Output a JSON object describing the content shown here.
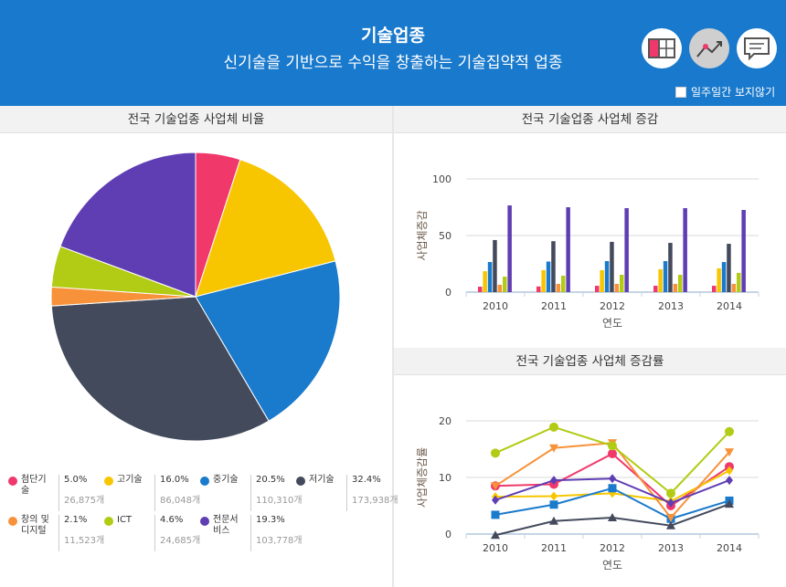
{
  "header": {
    "title": "기술업종",
    "subtitle": "신기술을 기반으로 수익을 창출하는 기술집약적 업종",
    "checkbox_label": "일주일간 보지않기",
    "icons": [
      "table-icon",
      "line-chart-icon",
      "comment-icon"
    ]
  },
  "colors": {
    "header": "#1979cc",
    "series": [
      "#f0386b",
      "#f7c600",
      "#1a7acc",
      "#434a5c",
      "#f7923a",
      "#b2cb15",
      "#5f3eb3"
    ]
  },
  "chart_data": [
    {
      "type": "pie",
      "title": "전국 기술업종 사업체 비율",
      "legend": [
        {
          "name": "첨단기술",
          "percent": "5.0%",
          "count": "26,875개",
          "value": 5.0
        },
        {
          "name": "고기술",
          "percent": "16.0%",
          "count": "86,048개",
          "value": 16.0
        },
        {
          "name": "중기술",
          "percent": "20.5%",
          "count": "110,310개",
          "value": 20.5
        },
        {
          "name": "저기술",
          "percent": "32.4%",
          "count": "173,938개",
          "value": 32.4
        },
        {
          "name": "창의 및 디지털",
          "percent": "2.1%",
          "count": "11,523개",
          "value": 2.1
        },
        {
          "name": "ICT",
          "percent": "4.6%",
          "count": "24,685개",
          "value": 4.6
        },
        {
          "name": "전문서비스",
          "percent": "19.3%",
          "count": "103,778개",
          "value": 19.3
        }
      ]
    },
    {
      "type": "bar",
      "title": "전국 기술업종 사업체 증감",
      "xlabel": "연도",
      "ylabel": "사업체증감",
      "ylim": [
        0,
        100
      ],
      "yticks": [
        "0",
        "50",
        "100"
      ],
      "grid": true,
      "categories": [
        "2010",
        "2011",
        "2012",
        "2013",
        "2014"
      ],
      "series": [
        {
          "values": [
            4.8,
            5,
            5.6,
            5.6,
            5.6
          ]
        },
        {
          "values": [
            18.5,
            19.4,
            19.4,
            20.2,
            21
          ]
        },
        {
          "values": [
            26.6,
            27,
            27.4,
            27.4,
            26.6
          ]
        },
        {
          "values": [
            46,
            45,
            44.4,
            43.5,
            42.7
          ]
        },
        {
          "values": [
            6.5,
            7.3,
            7.3,
            7.3,
            7.3
          ]
        },
        {
          "values": [
            13.7,
            14.5,
            15.3,
            15.3,
            17
          ]
        },
        {
          "values": [
            76.6,
            75,
            74.2,
            74.2,
            72.6
          ]
        }
      ]
    },
    {
      "type": "line",
      "title": "전국 기술업종 사업체 증감률",
      "xlabel": "연도",
      "ylabel": "사업체증감률",
      "ylim": [
        0,
        20
      ],
      "yticks": [
        "0",
        "10",
        "20"
      ],
      "grid": true,
      "categories": [
        "2010",
        "2011",
        "2012",
        "2013",
        "2014"
      ],
      "series": [
        {
          "marker": "circle",
          "values": [
            8.5,
            8.8,
            14.2,
            5.0,
            11.9
          ]
        },
        {
          "marker": "diamond",
          "values": [
            6.6,
            6.7,
            7.2,
            5.8,
            11.2
          ]
        },
        {
          "marker": "square",
          "values": [
            3.4,
            5.2,
            8.1,
            2.7,
            5.9
          ]
        },
        {
          "marker": "triangle",
          "values": [
            -0.2,
            2.3,
            2.9,
            1.5,
            5.3
          ]
        },
        {
          "marker": "triangle-down",
          "values": [
            8.5,
            15.2,
            16.1,
            2.9,
            14.5
          ]
        },
        {
          "marker": "circle",
          "values": [
            14.3,
            18.9,
            15.6,
            7.2,
            18.1
          ]
        },
        {
          "marker": "diamond",
          "values": [
            6.0,
            9.5,
            9.8,
            5.5,
            9.5
          ]
        }
      ]
    }
  ]
}
